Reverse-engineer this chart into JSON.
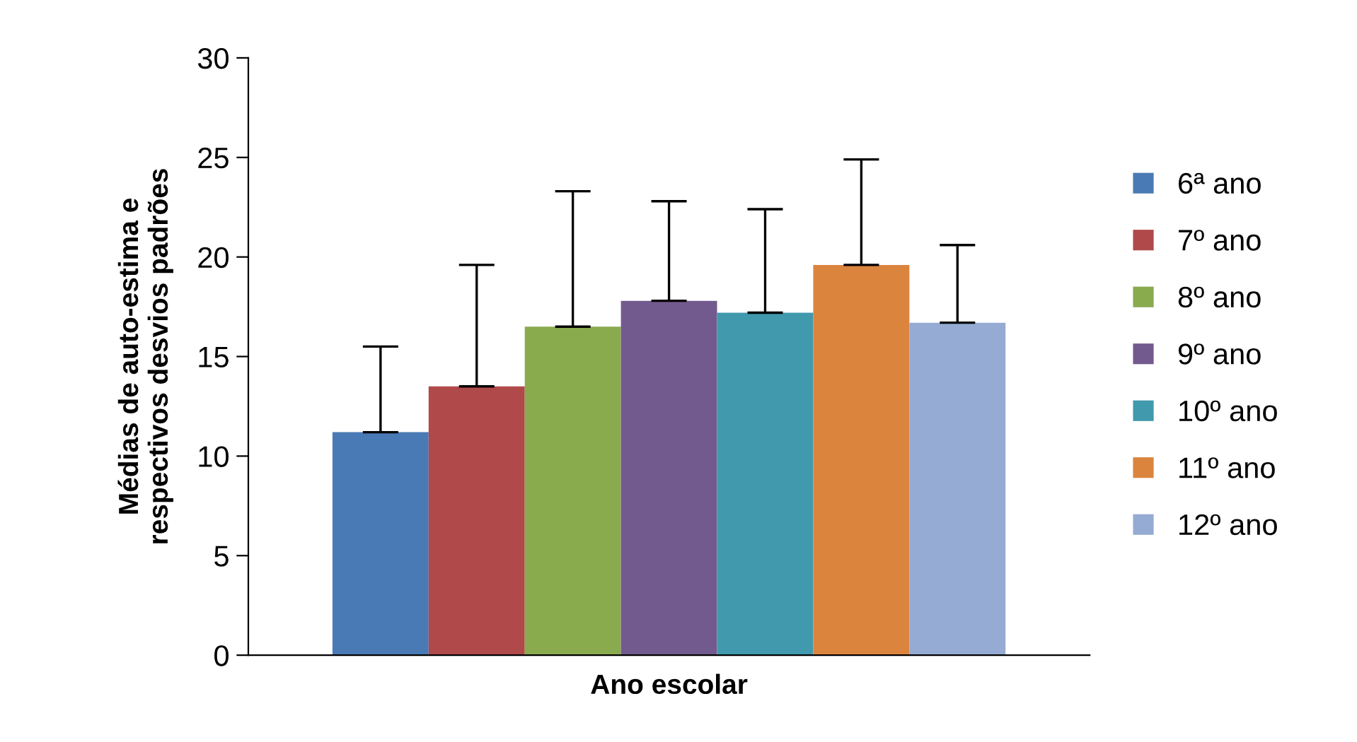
{
  "chart_data": {
    "type": "bar",
    "xlabel": "Ano escolar",
    "ylabel": "Médias de auto-estima e\nrespectivos desvios padrões",
    "categories": [
      null
    ],
    "ylim": [
      0,
      30
    ],
    "yticks": [
      0,
      5,
      10,
      15,
      20,
      25,
      30
    ],
    "grid": false,
    "legend": "right",
    "series": [
      {
        "name": "6ª ano",
        "color": "#4a7ab5",
        "values": [
          11.2
        ],
        "errors": [
          [
            11.2,
            15.5
          ]
        ]
      },
      {
        "name": "7º ano",
        "color": "#b0494a",
        "values": [
          13.5
        ],
        "errors": [
          [
            13.5,
            19.6
          ]
        ]
      },
      {
        "name": "8º ano",
        "color": "#8aaa4e",
        "values": [
          16.5
        ],
        "errors": [
          [
            16.5,
            23.3
          ]
        ]
      },
      {
        "name": "9º ano",
        "color": "#735a8e",
        "values": [
          17.8
        ],
        "errors": [
          [
            17.8,
            22.8
          ]
        ]
      },
      {
        "name": "10º ano",
        "color": "#4199ae",
        "values": [
          17.2
        ],
        "errors": [
          [
            17.2,
            22.4
          ]
        ]
      },
      {
        "name": "11º ano",
        "color": "#db843e",
        "values": [
          19.6
        ],
        "errors": [
          [
            19.6,
            24.9
          ]
        ]
      },
      {
        "name": "12º ano",
        "color": "#95abd4",
        "values": [
          16.7
        ],
        "errors": [
          [
            16.7,
            20.6
          ]
        ]
      }
    ]
  }
}
